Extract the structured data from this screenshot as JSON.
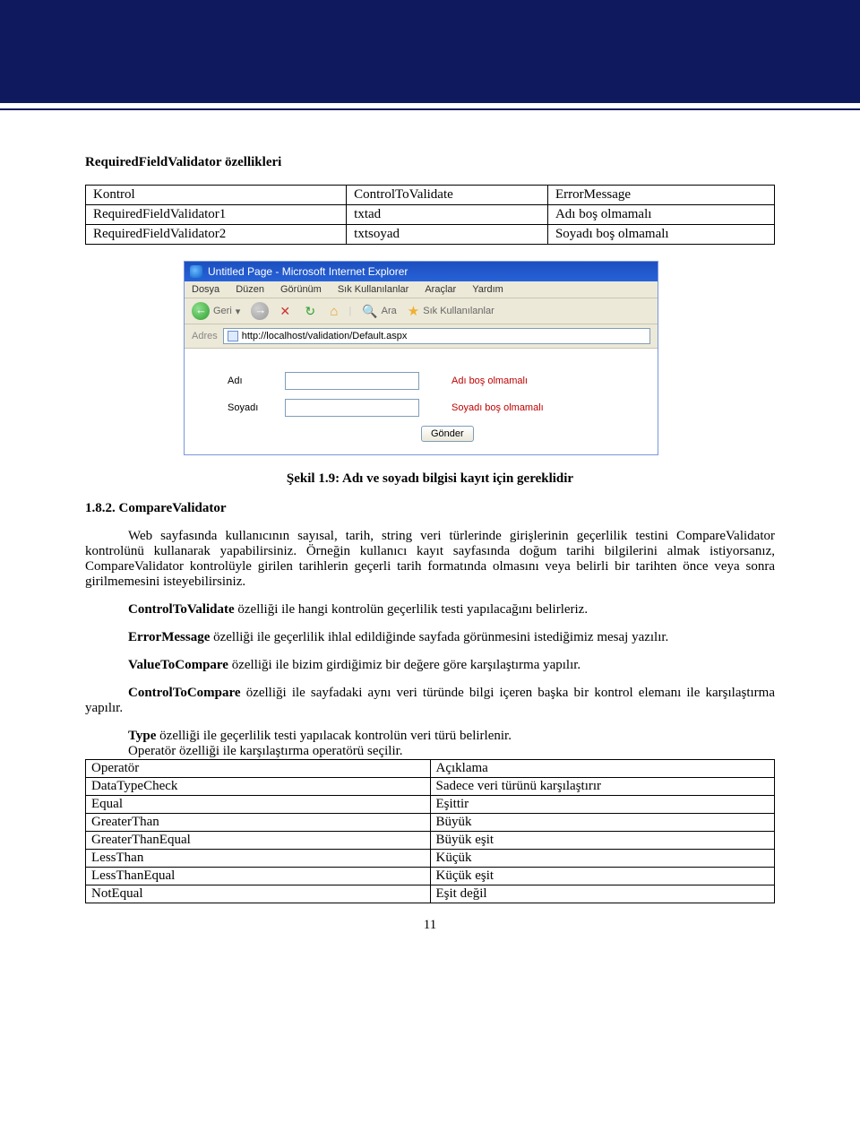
{
  "colors": {
    "header_bg": "#0f1a5e",
    "error_text": "#c00000",
    "ie_title_bg_start": "#1c4fbf",
    "ie_title_bg_end": "#2762d8",
    "ie_chrome_bg": "#ece9d8",
    "input_border": "#7f9db9"
  },
  "heading1": "RequiredFieldValidator özellikleri",
  "table1": {
    "headers": [
      "Kontrol",
      "ControlToValidate",
      "ErrorMessage"
    ],
    "rows": [
      [
        "RequiredFieldValidator1",
        "txtad",
        "Adı boş olmamalı"
      ],
      [
        "RequiredFieldValidator2",
        "txtsoyad",
        "Soyadı boş olmamalı"
      ]
    ]
  },
  "ie": {
    "title": "Untitled Page - Microsoft Internet Explorer",
    "menu": [
      "Dosya",
      "Düzen",
      "Görünüm",
      "Sık Kullanılanlar",
      "Araçlar",
      "Yardım"
    ],
    "toolbar": {
      "back": "Geri",
      "search": "Ara",
      "favorites": "Sık Kullanılanlar"
    },
    "addr_label": "Adres",
    "url": "http://localhost/validation/Default.aspx",
    "form": {
      "label_name": "Adı",
      "label_surname": "Soyadı",
      "err_name": "Adı boş olmamalı",
      "err_surname": "Soyadı boş olmamalı",
      "submit": "Gönder"
    }
  },
  "figure_caption": "Şekil 1.9: Adı ve soyadı bilgisi kayıt için gereklidir",
  "section_heading": "1.8.2. CompareValidator",
  "para1": "Web sayfasında kullanıcının sayısal, tarih, string veri türlerinde girişlerinin geçerlilik testini CompareValidator kontrolünü kullanarak yapabilirsiniz. Örneğin kullanıcı kayıt sayfasında doğum tarihi bilgilerini almak istiyorsanız, CompareValidator kontrolüyle girilen tarihlerin geçerli tarih formatında olmasını veya belirli bir tarihten önce veya sonra girilmemesini isteyebilirsiniz.",
  "para2_bold": "ControlToValidate",
  "para2_rest": " özelliği ile hangi kontrolün geçerlilik testi yapılacağını belirleriz.",
  "para3_bold": "ErrorMessage",
  "para3_rest": " özelliği ile geçerlilik ihlal edildiğinde sayfada görünmesini istediğimiz mesaj yazılır.",
  "para4_bold": "ValueToCompare",
  "para4_rest": " özelliği ile bizim girdiğimiz bir değere göre karşılaştırma yapılır.",
  "para5_bold": "ControlToCompare",
  "para5_rest": " özelliği ile sayfadaki aynı veri türünde bilgi içeren başka bir kontrol elemanı ile karşılaştırma yapılır.",
  "para6_bold": "Type",
  "para6_rest": " özelliği ile geçerlilik testi yapılacak kontrolün veri türü belirlenir.",
  "pre_op": "Operatör özelliği ile karşılaştırma operatörü seçilir.",
  "op_table": {
    "rows": [
      [
        "Operatör",
        "Açıklama"
      ],
      [
        "DataTypeCheck",
        "Sadece veri türünü karşılaştırır"
      ],
      [
        "Equal",
        "Eşittir"
      ],
      [
        "GreaterThan",
        "Büyük"
      ],
      [
        "GreaterThanEqual",
        "Büyük eşit"
      ],
      [
        "LessThan",
        "Küçük"
      ],
      [
        "LessThanEqual",
        "Küçük eşit"
      ],
      [
        "NotEqual",
        "Eşit değil"
      ]
    ]
  },
  "page_number": "11"
}
